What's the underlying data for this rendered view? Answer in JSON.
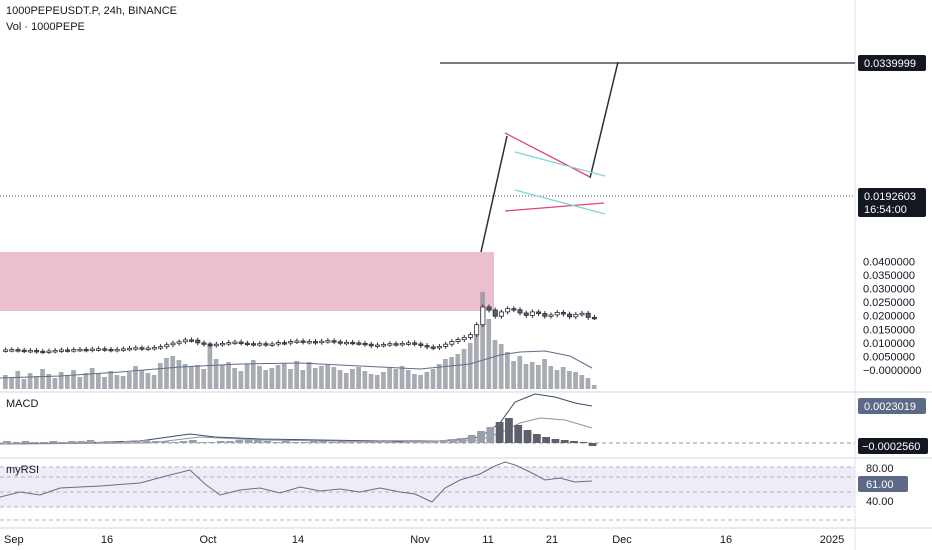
{
  "header": {
    "symbol_line": "1000PEPEUSDT.P, 24h, BINANCE",
    "volume_label": "Vol · 1000PEPE"
  },
  "price_axis": {
    "ticks": [
      "0.0400000",
      "0.0350000",
      "0.0300000",
      "0.0250000",
      "0.0200000",
      "0.0150000",
      "0.0100000",
      "0.0050000",
      "−0.0000000"
    ],
    "target_price_badge": "0.0339999",
    "last_price_badge": "0.0192603",
    "countdown_badge": "16:54:00"
  },
  "macd": {
    "label": "MACD",
    "badge_positive": "0.0023019",
    "badge_negative": "−0.0002560"
  },
  "rsi": {
    "label": "myRSI",
    "ticks": [
      "80.00",
      "40.00"
    ],
    "badge": "61.00"
  },
  "time_axis": {
    "ticks": [
      "Sep",
      "16",
      "Oct",
      "14",
      "Nov",
      "11",
      "21",
      "Dec",
      "16",
      "2025"
    ]
  },
  "colors": {
    "background": "#ffffff",
    "candle_up": "#ffffff",
    "candle_down": "#5d606b",
    "candle_border": "#2a2e39",
    "volume_bar": "#8c8f98",
    "consolidation_box": "#e8b4c8",
    "flag_line_top": "#e0407a",
    "flag_line_channel": "#7fd6d3",
    "badge_dark": "#131722",
    "rsi_band": "#ece7f5"
  }
}
